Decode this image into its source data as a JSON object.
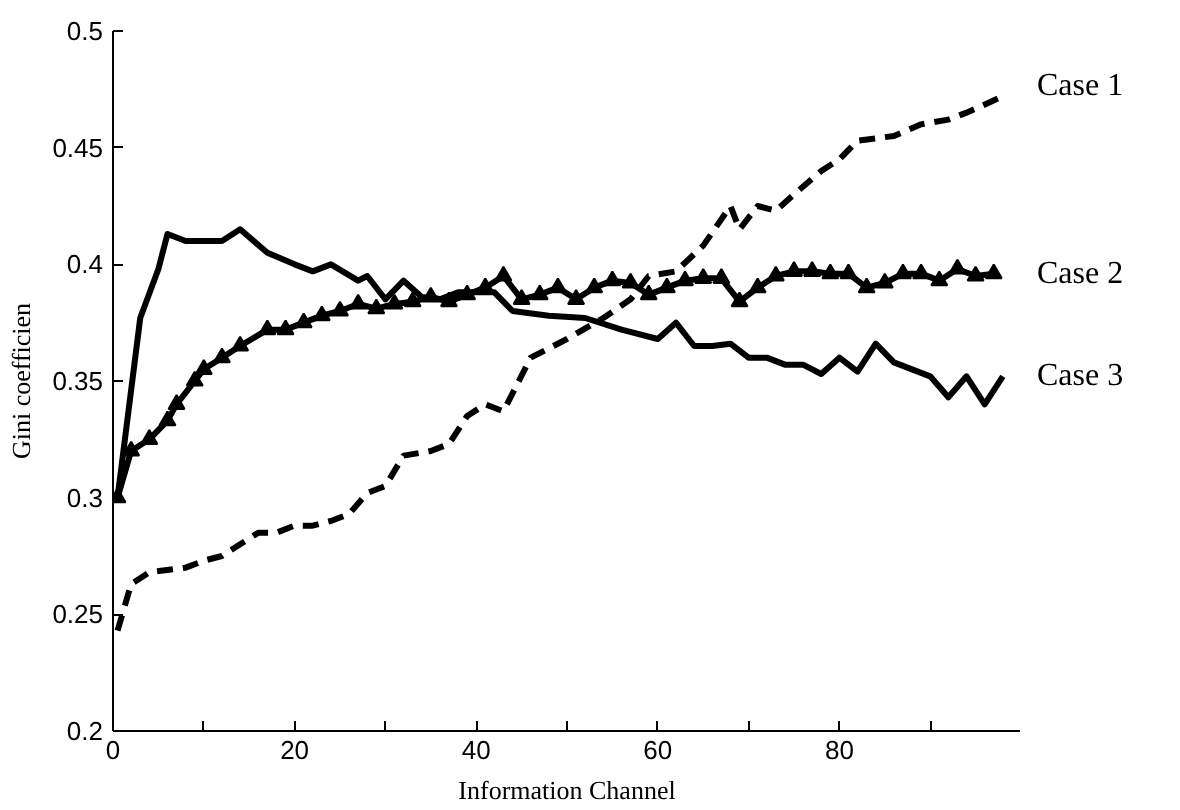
{
  "chart_data": {
    "type": "line",
    "xlabel": "Information Channel",
    "ylabel": "Gini coefficien",
    "xlim": [
      0,
      100
    ],
    "ylim": [
      0.2,
      0.5
    ],
    "xticks": [
      0,
      {
        "value": 10,
        "label": null
      },
      20,
      {
        "value": 30,
        "label": null
      },
      40,
      {
        "value": 50,
        "label": null
      },
      60,
      {
        "value": 70,
        "label": null
      },
      80,
      {
        "value": 90,
        "label": null
      },
      {
        "value": 100,
        "label": null
      }
    ],
    "yticks": [
      0.2,
      0.25,
      0.3,
      0.35,
      0.4,
      0.45,
      0.5
    ],
    "grid": false,
    "series": [
      {
        "name": "Case 1",
        "color": "#000000",
        "line_style": "dashed",
        "marker": "none",
        "x": [
          0.5,
          2,
          4,
          8,
          10,
          12,
          14,
          16,
          18,
          20,
          22,
          24,
          26,
          28,
          30,
          32,
          35,
          37,
          39,
          41,
          43,
          46,
          50,
          54,
          57,
          59,
          62,
          65,
          68,
          69,
          71,
          73,
          75,
          78,
          80,
          82,
          86,
          89,
          92,
          94,
          98
        ],
        "values": [
          0.243,
          0.263,
          0.268,
          0.27,
          0.273,
          0.275,
          0.28,
          0.285,
          0.285,
          0.288,
          0.288,
          0.29,
          0.293,
          0.302,
          0.305,
          0.318,
          0.32,
          0.323,
          0.335,
          0.34,
          0.337,
          0.36,
          0.368,
          0.377,
          0.385,
          0.395,
          0.397,
          0.408,
          0.425,
          0.415,
          0.425,
          0.423,
          0.43,
          0.44,
          0.445,
          0.453,
          0.455,
          0.46,
          0.462,
          0.465,
          0.472
        ]
      },
      {
        "name": "Case 2",
        "color": "#000000",
        "line_style": "solid",
        "marker": "triangle",
        "x": [
          0.5,
          2,
          4,
          6,
          7,
          9,
          10,
          12,
          14,
          17,
          19,
          21,
          23,
          25,
          27,
          29,
          31,
          33,
          35,
          37,
          39,
          41,
          43,
          45,
          47,
          49,
          51,
          53,
          55,
          57,
          59,
          61,
          63,
          65,
          67,
          69,
          71,
          73,
          75,
          77,
          79,
          81,
          83,
          85,
          87,
          89,
          91,
          93,
          95,
          97
        ],
        "values": [
          0.3,
          0.32,
          0.325,
          0.333,
          0.34,
          0.35,
          0.355,
          0.36,
          0.365,
          0.372,
          0.372,
          0.375,
          0.378,
          0.38,
          0.383,
          0.381,
          0.383,
          0.384,
          0.386,
          0.384,
          0.387,
          0.39,
          0.395,
          0.385,
          0.387,
          0.39,
          0.385,
          0.39,
          0.393,
          0.392,
          0.387,
          0.39,
          0.393,
          0.394,
          0.394,
          0.384,
          0.39,
          0.395,
          0.397,
          0.397,
          0.396,
          0.396,
          0.39,
          0.392,
          0.396,
          0.396,
          0.393,
          0.398,
          0.395,
          0.396
        ]
      },
      {
        "name": "Case 3",
        "color": "#000000",
        "line_style": "solid",
        "marker": "none",
        "x": [
          0.5,
          3,
          5,
          6,
          8,
          10,
          12,
          14,
          17,
          20,
          22,
          24,
          27,
          28,
          30,
          32,
          34,
          36,
          38,
          42,
          44,
          48,
          52,
          56,
          60,
          62,
          64,
          66,
          68,
          70,
          72,
          74,
          76,
          78,
          80,
          82,
          84,
          86,
          88,
          90,
          92,
          94,
          96,
          98
        ],
        "values": [
          0.3,
          0.377,
          0.398,
          0.413,
          0.41,
          0.41,
          0.41,
          0.415,
          0.405,
          0.4,
          0.397,
          0.4,
          0.393,
          0.395,
          0.385,
          0.393,
          0.386,
          0.385,
          0.388,
          0.388,
          0.38,
          0.378,
          0.377,
          0.372,
          0.368,
          0.375,
          0.365,
          0.365,
          0.366,
          0.36,
          0.36,
          0.357,
          0.357,
          0.353,
          0.36,
          0.354,
          0.366,
          0.358,
          0.355,
          0.352,
          0.343,
          0.352,
          0.34,
          0.352
        ]
      }
    ]
  }
}
